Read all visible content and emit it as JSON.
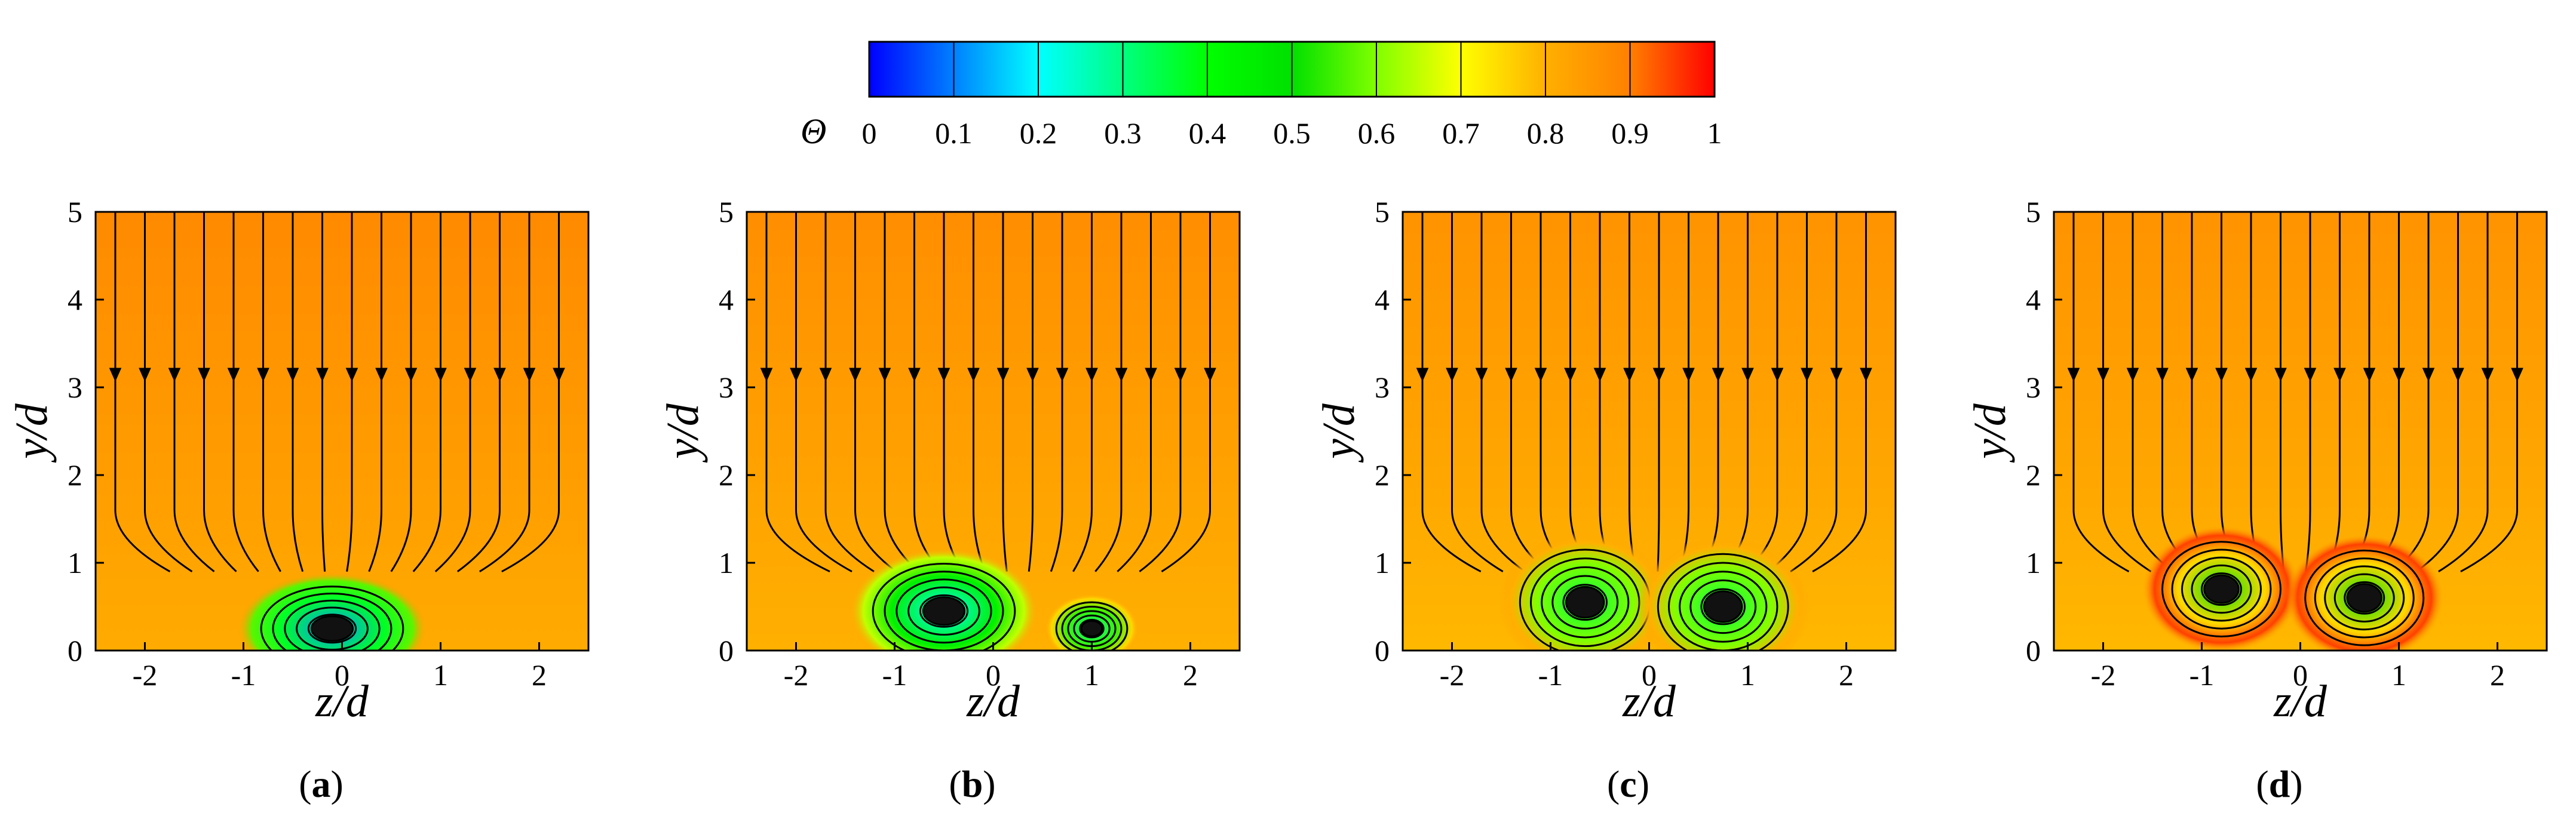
{
  "figure": {
    "colorbar": {
      "symbol": "Θ",
      "ticks": [
        "0",
        "0.1",
        "0.2",
        "0.3",
        "0.4",
        "0.5",
        "0.6",
        "0.7",
        "0.8",
        "0.9",
        "1"
      ],
      "colormap": [
        "#0000ff",
        "#0080ff",
        "#00ffff",
        "#00ff80",
        "#00ff00",
        "#00e000",
        "#80ff00",
        "#ffff00",
        "#ffb000",
        "#ff8000",
        "#ff0000"
      ]
    },
    "panels": [
      {
        "label_open": "(",
        "label": "a",
        "label_close": ")"
      },
      {
        "label_open": "(",
        "label": "b",
        "label_close": ")"
      },
      {
        "label_open": "(",
        "label": "c",
        "label_close": ")"
      },
      {
        "label_open": "(",
        "label": "d",
        "label_close": ")"
      }
    ]
  },
  "chart_data": [
    {
      "type": "heatmap",
      "panel": "a",
      "xlabel": "z/d",
      "ylabel": "y/d",
      "xlim": [
        -2.5,
        2.5
      ],
      "ylim": [
        0,
        5
      ],
      "xticks": [
        "-2",
        "-1",
        "0",
        "1",
        "2"
      ],
      "yticks": [
        "0",
        "1",
        "2",
        "3",
        "4",
        "5"
      ],
      "background_theta": 0.84,
      "vortices": [
        {
          "z": -0.1,
          "y": 0.25,
          "rz": 0.6,
          "ry": 0.4,
          "theta_min": 0.12
        }
      ]
    },
    {
      "type": "heatmap",
      "panel": "b",
      "xlabel": "z/d",
      "ylabel": "y/d",
      "xlim": [
        -2.5,
        2.5
      ],
      "ylim": [
        0,
        5
      ],
      "xticks": [
        "-2",
        "-1",
        "0",
        "1",
        "2"
      ],
      "yticks": [
        "0",
        "1",
        "2",
        "3",
        "4",
        "5"
      ],
      "background_theta": 0.83,
      "vortices": [
        {
          "z": -0.5,
          "y": 0.45,
          "rz": 0.6,
          "ry": 0.45,
          "theta_min": 0.2
        },
        {
          "z": 1.0,
          "y": 0.25,
          "rz": 0.3,
          "ry": 0.25,
          "theta_min": 0.3
        }
      ]
    },
    {
      "type": "heatmap",
      "panel": "c",
      "xlabel": "z/d",
      "ylabel": "y/d",
      "xlim": [
        -2.5,
        2.5
      ],
      "ylim": [
        0,
        5
      ],
      "xticks": [
        "-2",
        "-1",
        "0",
        "1",
        "2"
      ],
      "yticks": [
        "0",
        "1",
        "2",
        "3",
        "4",
        "5"
      ],
      "background_theta": 0.82,
      "vortices": [
        {
          "z": -0.65,
          "y": 0.55,
          "rz": 0.55,
          "ry": 0.5,
          "theta_min": 0.35
        },
        {
          "z": 0.75,
          "y": 0.5,
          "rz": 0.55,
          "ry": 0.5,
          "theta_min": 0.35
        }
      ]
    },
    {
      "type": "heatmap",
      "panel": "d",
      "xlabel": "z/d",
      "ylabel": "y/d",
      "xlim": [
        -2.5,
        2.5
      ],
      "ylim": [
        0,
        5
      ],
      "xticks": [
        "-2",
        "-1",
        "0",
        "1",
        "2"
      ],
      "yticks": [
        "0",
        "1",
        "2",
        "3",
        "4",
        "5"
      ],
      "background_theta": 0.82,
      "vortices": [
        {
          "z": -0.8,
          "y": 0.7,
          "rz": 0.5,
          "ry": 0.45,
          "theta_min": 0.5
        },
        {
          "z": 0.65,
          "y": 0.6,
          "rz": 0.5,
          "ry": 0.45,
          "theta_min": 0.5
        }
      ]
    }
  ]
}
